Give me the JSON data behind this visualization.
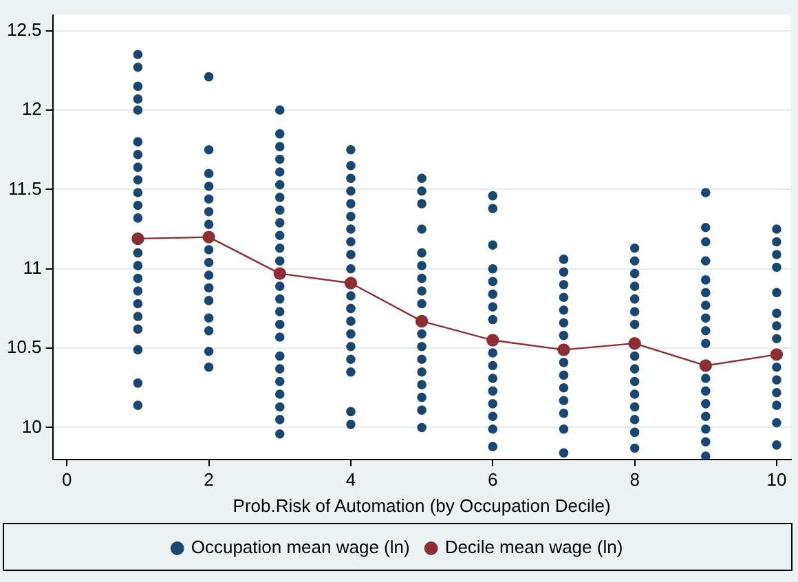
{
  "chart_data": {
    "type": "scatter",
    "xlabel": "Prob.Risk of Automation (by Occupation Decile)",
    "xlim": [
      -0.2,
      10.2
    ],
    "xticks": [
      0,
      2,
      4,
      6,
      8,
      10
    ],
    "ylim": [
      9.8,
      12.6
    ],
    "yticks": [
      10,
      10.5,
      11,
      11.5,
      12,
      12.5
    ],
    "grid": "y",
    "legend": "bottom",
    "marker": "circle",
    "series": [
      {
        "name": "Occupation mean wage (ln)",
        "type": "scatter",
        "color": "#1a4670",
        "x": [
          1,
          1,
          1,
          1,
          1,
          1,
          1,
          1,
          1,
          1,
          1,
          1,
          1,
          1,
          1,
          1,
          1,
          1,
          1,
          1,
          1,
          1,
          2,
          2,
          2,
          2,
          2,
          2,
          2,
          2,
          2,
          2,
          2,
          2,
          2,
          2,
          2,
          2,
          3,
          3,
          3,
          3,
          3,
          3,
          3,
          3,
          3,
          3,
          3,
          3,
          3,
          3,
          3,
          3,
          3,
          3,
          3,
          3,
          3,
          3,
          3,
          3,
          4,
          4,
          4,
          4,
          4,
          4,
          4,
          4,
          4,
          4,
          4,
          4,
          4,
          4,
          4,
          4,
          4,
          4,
          4,
          5,
          5,
          5,
          5,
          5,
          5,
          5,
          5,
          5,
          5,
          5,
          5,
          5,
          5,
          5,
          5,
          5,
          6,
          6,
          6,
          6,
          6,
          6,
          6,
          6,
          6,
          6,
          6,
          6,
          6,
          6,
          6,
          6,
          7,
          7,
          7,
          7,
          7,
          7,
          7,
          7,
          7,
          7,
          7,
          7,
          7,
          7,
          8,
          8,
          8,
          8,
          8,
          8,
          8,
          8,
          8,
          8,
          8,
          8,
          8,
          8,
          8,
          9,
          9,
          9,
          9,
          9,
          9,
          9,
          9,
          9,
          9,
          9,
          9,
          9,
          9,
          9,
          9,
          9,
          10,
          10,
          10,
          10,
          10,
          10,
          10,
          10,
          10,
          10,
          10,
          10,
          10,
          10
        ],
        "values": [
          12.35,
          12.27,
          12.15,
          12.07,
          12.0,
          11.8,
          11.72,
          11.64,
          11.56,
          11.48,
          11.4,
          11.32,
          11.1,
          11.02,
          10.94,
          10.86,
          10.78,
          10.7,
          10.62,
          10.49,
          10.28,
          10.14,
          12.21,
          11.75,
          11.6,
          11.52,
          11.44,
          11.36,
          11.28,
          11.12,
          11.04,
          10.96,
          10.88,
          10.8,
          10.69,
          10.61,
          10.48,
          10.38,
          12.0,
          11.85,
          11.77,
          11.69,
          11.61,
          11.53,
          11.45,
          11.37,
          11.29,
          11.21,
          11.13,
          11.05,
          10.89,
          10.81,
          10.73,
          10.65,
          10.57,
          10.45,
          10.37,
          10.29,
          10.21,
          10.13,
          10.05,
          9.96,
          11.75,
          11.65,
          11.57,
          11.49,
          11.41,
          11.33,
          11.25,
          11.17,
          11.09,
          11.0,
          10.83,
          10.75,
          10.67,
          10.59,
          10.51,
          10.43,
          10.35,
          10.1,
          10.02,
          11.57,
          11.49,
          11.41,
          11.25,
          11.1,
          11.02,
          10.94,
          10.86,
          10.78,
          10.59,
          10.51,
          10.43,
          10.35,
          10.27,
          10.19,
          10.11,
          10.0,
          11.46,
          11.38,
          11.15,
          11.0,
          10.92,
          10.84,
          10.76,
          10.68,
          10.47,
          10.39,
          10.31,
          10.23,
          10.15,
          10.07,
          9.99,
          9.88,
          11.06,
          10.98,
          10.9,
          10.82,
          10.74,
          10.66,
          10.58,
          10.41,
          10.33,
          10.25,
          10.17,
          10.09,
          9.99,
          9.84,
          11.13,
          11.05,
          10.97,
          10.89,
          10.81,
          10.73,
          10.65,
          10.45,
          10.37,
          10.29,
          10.21,
          10.13,
          10.05,
          9.97,
          9.87,
          11.48,
          11.26,
          11.17,
          11.05,
          10.93,
          10.85,
          10.77,
          10.69,
          10.61,
          10.53,
          10.31,
          10.23,
          10.15,
          10.07,
          9.99,
          9.91,
          9.82,
          11.25,
          11.17,
          11.09,
          11.01,
          10.85,
          10.72,
          10.64,
          10.56,
          10.38,
          10.3,
          10.22,
          10.14,
          10.03,
          9.89
        ]
      },
      {
        "name": "Decile mean wage (ln)",
        "type": "line",
        "color": "#8b2e35",
        "x": [
          1,
          2,
          3,
          4,
          5,
          6,
          7,
          8,
          9,
          10
        ],
        "values": [
          11.19,
          11.2,
          10.97,
          10.91,
          10.67,
          10.55,
          10.49,
          10.53,
          10.39,
          10.46
        ]
      }
    ]
  }
}
